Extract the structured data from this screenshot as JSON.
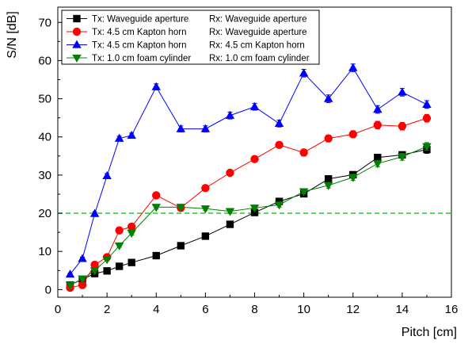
{
  "chart_data": {
    "type": "line",
    "xlabel": "Pitch [cm]",
    "ylabel": "S/N [dB]",
    "xlim": [
      0,
      16
    ],
    "ylim": [
      -2,
      74
    ],
    "xticks": [
      0,
      2,
      4,
      6,
      8,
      10,
      12,
      14,
      16
    ],
    "yticks": [
      0,
      10,
      20,
      30,
      40,
      50,
      60,
      70
    ],
    "grid": false,
    "legend_position": "top-left",
    "reference_line": {
      "y": 20,
      "color": "#22cc22",
      "style": "dashed"
    },
    "series": [
      {
        "name": "Tx: Waveguide aperture",
        "rx": "Rx: Waveguide aperture",
        "color": "#000000",
        "marker": "square",
        "x": [
          0.5,
          1,
          1.5,
          2,
          2.5,
          3,
          4,
          5,
          6,
          7,
          8,
          9,
          10,
          11,
          12,
          13,
          14,
          15
        ],
        "values": [
          1.2,
          2.7,
          4.2,
          4.9,
          6.1,
          7.1,
          8.9,
          11.5,
          14.0,
          17.1,
          20.2,
          23.1,
          25.1,
          29.0,
          30.1,
          34.6,
          35.3,
          36.7
        ],
        "errors": [
          0.3,
          0.3,
          0.3,
          0.3,
          0.3,
          0.4,
          0.4,
          0.4,
          0.4,
          0.5,
          0.5,
          0.5,
          0.6,
          0.8,
          0.8,
          0.8,
          0.8,
          1.0
        ]
      },
      {
        "name": "Tx: 4.5 cm Kapton horn",
        "rx": "Rx: Waveguide aperture",
        "color": "#ff0000",
        "marker": "circle",
        "x": [
          0.5,
          1,
          1.5,
          2,
          2.5,
          3,
          4,
          5,
          6,
          7,
          8,
          9,
          10,
          11,
          12,
          13,
          14,
          15
        ],
        "values": [
          0.5,
          1.2,
          6.5,
          8.5,
          15.5,
          16.5,
          24.7,
          21.4,
          26.6,
          30.6,
          34.2,
          37.9,
          35.9,
          39.6,
          40.7,
          43.1,
          42.8,
          44.9
        ],
        "errors": [
          0.3,
          0.3,
          0.4,
          0.4,
          0.5,
          0.5,
          0.6,
          0.6,
          0.6,
          0.7,
          0.8,
          0.8,
          0.9,
          0.9,
          0.9,
          1.0,
          1.0,
          1.0
        ]
      },
      {
        "name": "Tx: 4.5 cm Kapton horn",
        "rx": "Rx: 4.5 cm Kapton horn",
        "color": "#0000ff",
        "marker": "triangle-up",
        "x": [
          0.5,
          1,
          1.5,
          2,
          2.5,
          3,
          4,
          5,
          6,
          7,
          8,
          9,
          10,
          11,
          12,
          13,
          14,
          15
        ],
        "values": [
          4.0,
          8.1,
          19.9,
          29.8,
          39.6,
          40.4,
          53.1,
          42.1,
          42.1,
          45.6,
          47.9,
          43.5,
          56.7,
          50.0,
          58.1,
          47.2,
          51.7,
          48.5
        ],
        "errors": [
          0.3,
          0.4,
          0.5,
          0.6,
          0.6,
          0.6,
          0.8,
          0.8,
          0.8,
          0.9,
          0.9,
          0.9,
          1.0,
          1.0,
          1.0,
          1.0,
          1.0,
          1.0
        ]
      },
      {
        "name": "Tx: 1.0 cm foam cylinder",
        "rx": "Rx: 1.0 cm foam cylinder",
        "color": "#008000",
        "marker": "triangle-down",
        "x": [
          0.5,
          1,
          1.5,
          2,
          2.5,
          3,
          4,
          5,
          6,
          7,
          8,
          9,
          10,
          11,
          12,
          13,
          14,
          15
        ],
        "values": [
          1.2,
          2.8,
          5.0,
          7.9,
          11.5,
          14.8,
          21.6,
          21.6,
          21.2,
          20.5,
          21.4,
          22.2,
          25.7,
          27.3,
          29.4,
          33.0,
          34.8,
          37.5
        ],
        "errors": [
          0.3,
          0.3,
          0.3,
          0.4,
          0.4,
          0.5,
          0.5,
          0.5,
          0.5,
          0.5,
          0.5,
          0.6,
          0.6,
          0.7,
          0.8,
          0.8,
          0.9,
          1.0
        ]
      }
    ]
  }
}
